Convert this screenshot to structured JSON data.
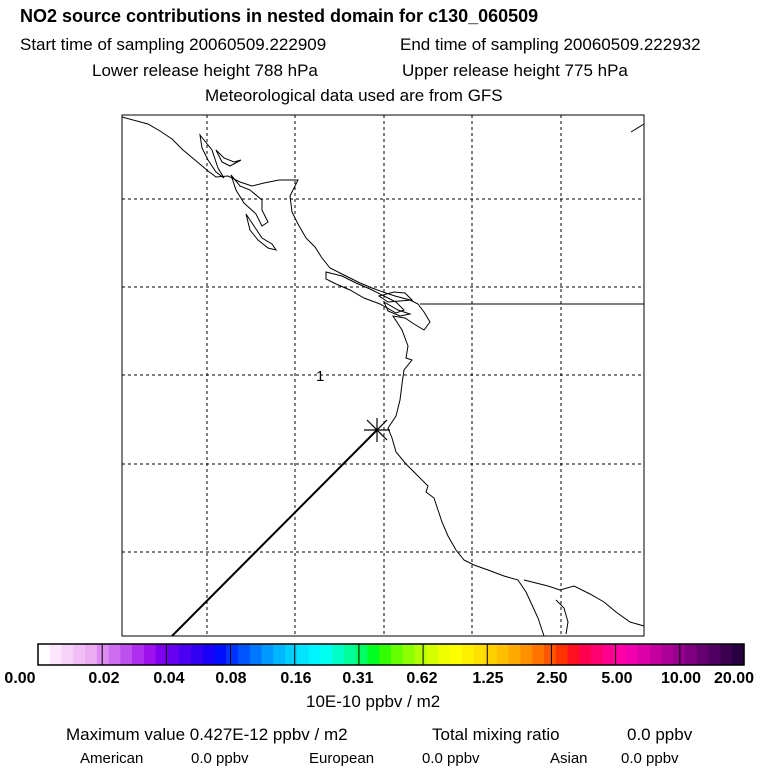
{
  "header": {
    "title": "NO2 source contributions in nested domain for c130_060509",
    "start_time": "Start time of sampling 20060509.222909",
    "end_time": "End time of sampling 20060509.222932",
    "lower_height": "Lower release height  788 hPa",
    "upper_height": "Upper release height  775 hPa",
    "met_data": "Meteorological data used are from GFS"
  },
  "map": {
    "contour_label": "1",
    "release_marker": "x-asterisk",
    "colors": {
      "coastline": "#000000",
      "grid": "#000000",
      "track": "#000000"
    }
  },
  "colorbar": {
    "ticks": [
      "0.00",
      "0.02",
      "0.04",
      "0.08",
      "0.16",
      "0.31",
      "0.62",
      "1.25",
      "2.50",
      "5.00",
      "10.00",
      "20.00"
    ],
    "colors": [
      "#ffffff",
      "#fbe6fb",
      "#f6d2f8",
      "#f1bff6",
      "#ebacf3",
      "#dc8cf1",
      "#cd6ef0",
      "#be50ef",
      "#ae2ff0",
      "#9f10ef",
      "#7e00ef",
      "#6500f0",
      "#4c00f2",
      "#3300f4",
      "#1a00f7",
      "#0010ff",
      "#0033ff",
      "#0055ff",
      "#0077ff",
      "#0099ff",
      "#00b7ff",
      "#00cfff",
      "#00e4ff",
      "#00f5ff",
      "#00fff0",
      "#00ffc8",
      "#00ff9a",
      "#00ff60",
      "#00ff20",
      "#33ff00",
      "#66ff00",
      "#8cff00",
      "#b2ff00",
      "#d4ff00",
      "#f0ff00",
      "#ffff00",
      "#fff000",
      "#ffe000",
      "#ffd000",
      "#ffbf00",
      "#ffaa00",
      "#ff9000",
      "#ff7400",
      "#ff5600",
      "#ff3300",
      "#ff1020",
      "#ff0050",
      "#ff0070",
      "#ff0090",
      "#ff00a8",
      "#f000b0",
      "#dc00a8",
      "#c400a0",
      "#ac0096",
      "#94008c",
      "#7c0080",
      "#640070",
      "#500060",
      "#3c0050",
      "#280040"
    ],
    "unit": "10E-10 ppbv / m2"
  },
  "footer": {
    "max_value": "Maximum value  0.427E-12 ppbv / m2",
    "total_label": "Total mixing ratio",
    "total_value": "0.0 ppbv",
    "american_label": "American",
    "american_value": "0.0 ppbv",
    "european_label": "European",
    "european_value": "0.0 ppbv",
    "asian_label": "Asian",
    "asian_value": "0.0 ppbv"
  }
}
